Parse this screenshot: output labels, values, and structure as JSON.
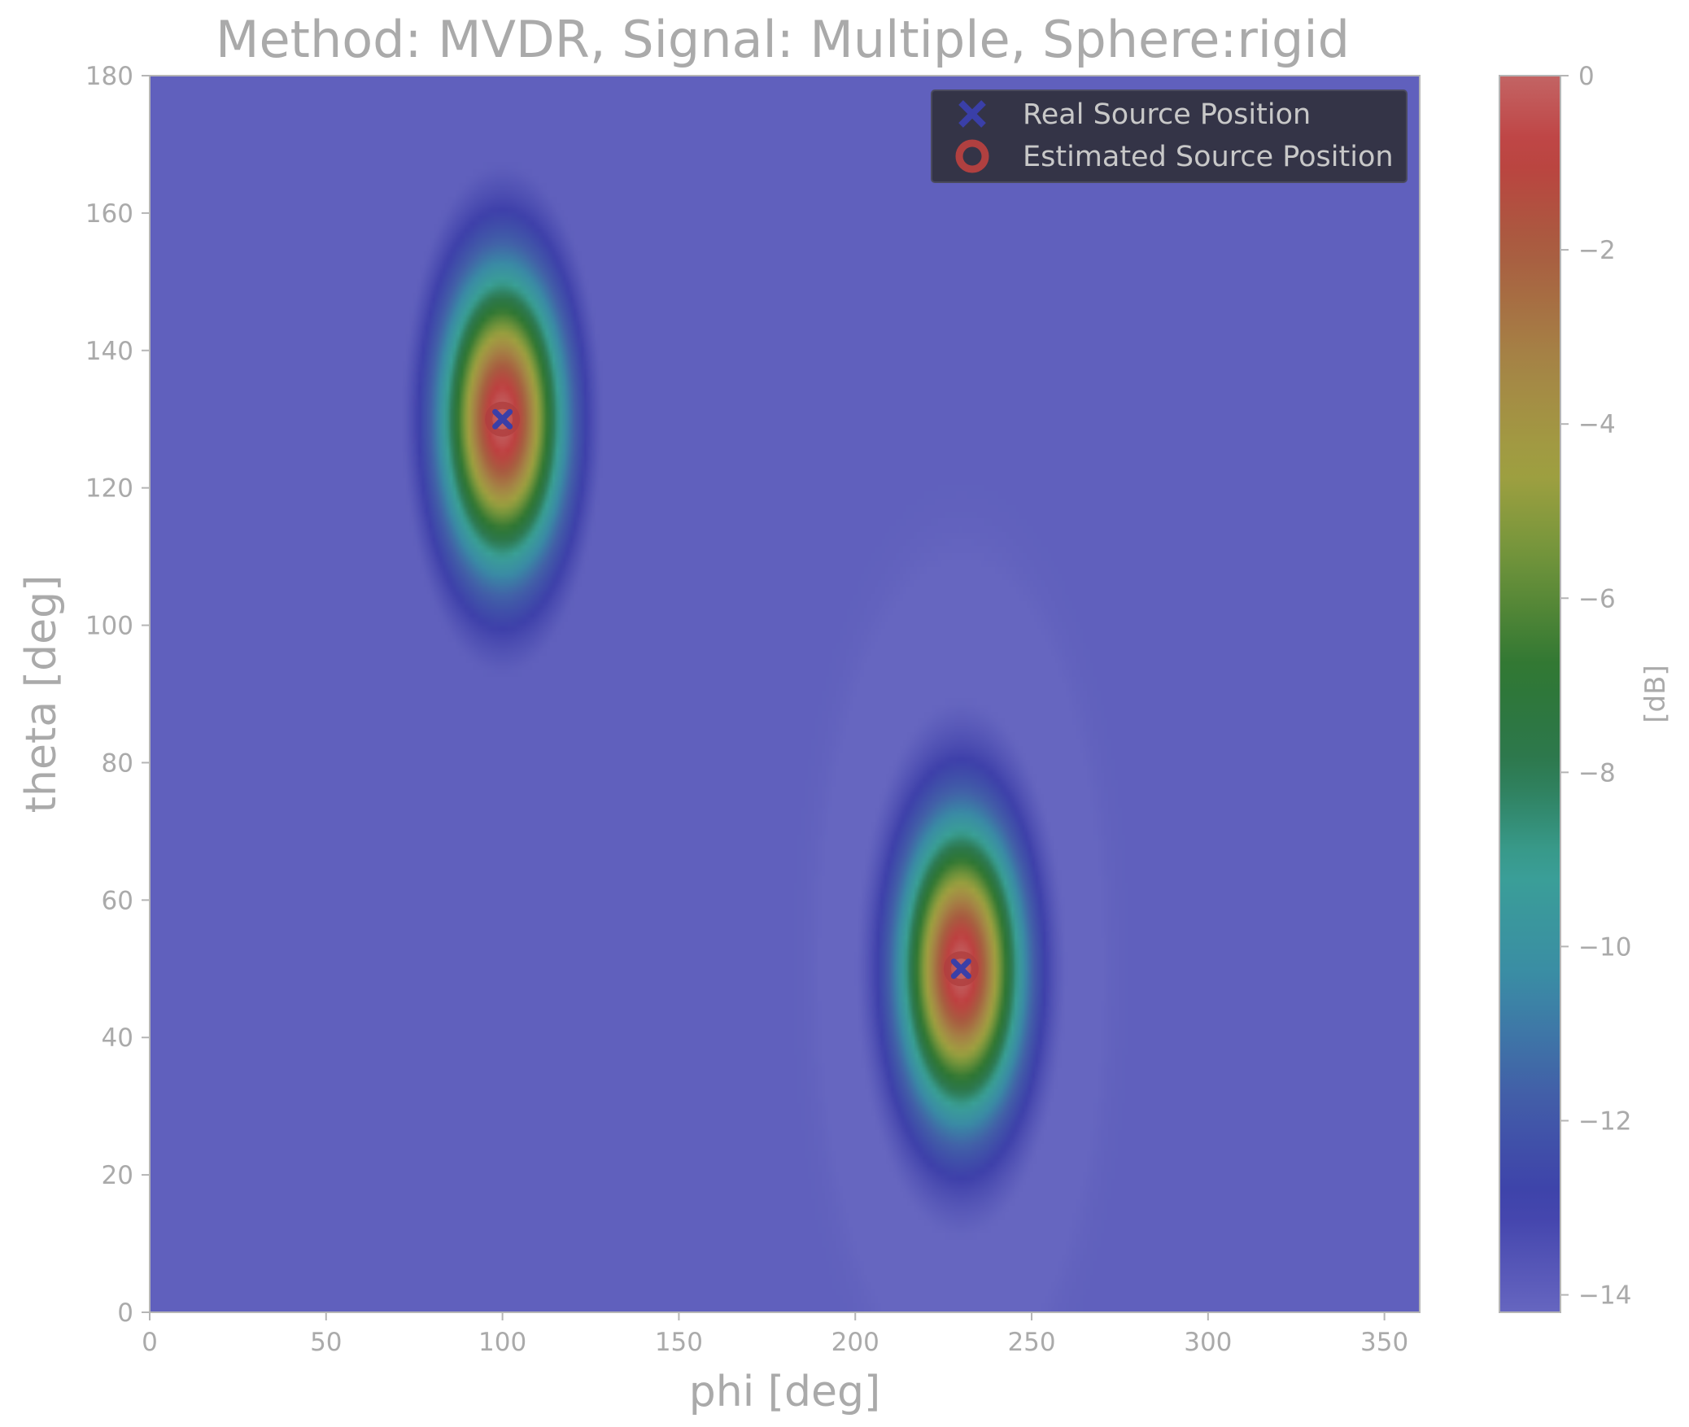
{
  "chart_data": {
    "type": "heatmap",
    "title": "Method: MVDR, Signal: Multiple, Sphere:rigid",
    "xlabel": "phi [deg]",
    "ylabel": "theta [deg]",
    "xlim": [
      0,
      360
    ],
    "ylim": [
      0,
      180
    ],
    "xticks": [
      0,
      50,
      100,
      150,
      200,
      250,
      300,
      350
    ],
    "yticks": [
      0,
      20,
      40,
      60,
      80,
      100,
      120,
      140,
      160,
      180
    ],
    "colorbar": {
      "label": "[dB]",
      "range": [
        -14.2,
        0
      ],
      "ticks": [
        0,
        -2,
        -4,
        -6,
        -8,
        -10,
        -12,
        -14
      ],
      "tick_labels": [
        "0",
        "−2",
        "−4",
        "−6",
        "−8",
        "−10",
        "−12",
        "−14"
      ]
    },
    "background_level_db": -14,
    "peaks": [
      {
        "phi": 100,
        "theta": 130,
        "peak_db": 0
      },
      {
        "phi": 230,
        "theta": 50,
        "peak_db": 0
      }
    ],
    "legend": {
      "position": "top-right",
      "entries": [
        {
          "label": "Real Source Position",
          "marker": "x",
          "color": "#3a3fa8"
        },
        {
          "label": "Estimated Source Position",
          "marker": "o",
          "color": "#b04040"
        }
      ]
    },
    "real_sources": [
      {
        "phi": 100,
        "theta": 130
      },
      {
        "phi": 230,
        "theta": 50
      }
    ],
    "estimated_sources": [
      {
        "phi": 100,
        "theta": 130
      },
      {
        "phi": 230,
        "theta": 50
      }
    ],
    "colors": {
      "background": "#6666c0",
      "text": "#aaaaaa",
      "legend_bg": "#343447",
      "axis_line": "#b5b5b5"
    }
  }
}
